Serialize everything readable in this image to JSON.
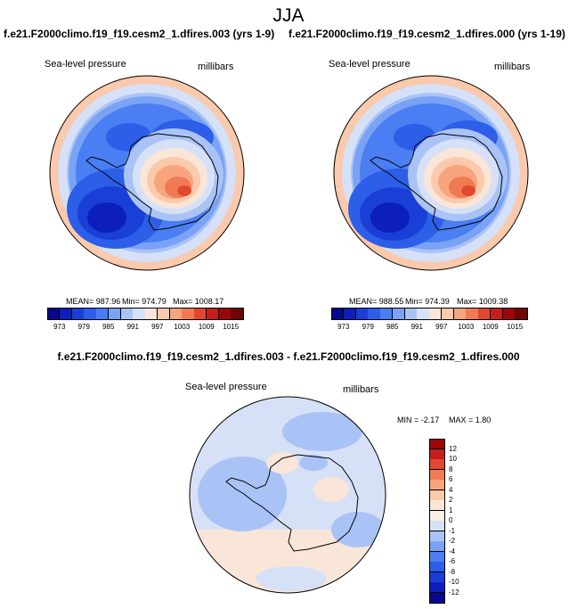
{
  "page": {
    "title": "JJA",
    "diff_title": "f.e21.F2000climo.f19_f19.cesm2_1.dfires.003 - f.e21.F2000climo.f19_f19.cesm2_1.dfires.000"
  },
  "chart_data": [
    {
      "type": "heatmap",
      "projection": "south-polar-stereographic",
      "title": "f.e21.F2000climo.f19_f19.cesm2_1.dfires.003 (yrs 1-9)",
      "variable": "Sea-level pressure",
      "units": "millibars",
      "mean_label": "MEAN= 987.96",
      "min_label": "Min= 974.79",
      "max_label": "Max= 1008.17",
      "mean": 987.96,
      "min": 974.79,
      "max": 1008.17,
      "colorbar": {
        "levels": [
          973,
          976,
          979,
          982,
          985,
          988,
          991,
          994,
          997,
          1000,
          1003,
          1006,
          1009,
          1012,
          1015
        ],
        "tick_labels": [
          "973",
          "979",
          "985",
          "991",
          "997",
          "1003",
          "1009",
          "1015"
        ],
        "colors": [
          "#08088c",
          "#0c1fba",
          "#1a3fd6",
          "#2c5ee8",
          "#4a7ef2",
          "#7aa3f5",
          "#aac3f6",
          "#d6e1f7",
          "#fae6d8",
          "#fbc9ab",
          "#f8a47c",
          "#f07a54",
          "#e0492f",
          "#c51f1c",
          "#9a0808",
          "#6e0404"
        ]
      }
    },
    {
      "type": "heatmap",
      "projection": "south-polar-stereographic",
      "title": "f.e21.F2000climo.f19_f19.cesm2_1.dfires.000 (yrs 1-19)",
      "variable": "Sea-level pressure",
      "units": "millibars",
      "mean_label": "MEAN= 988.55",
      "min_label": "Min= 974.39",
      "max_label": "Max= 1009.38",
      "mean": 988.55,
      "min": 974.39,
      "max": 1009.38,
      "colorbar": {
        "levels": [
          973,
          976,
          979,
          982,
          985,
          988,
          991,
          994,
          997,
          1000,
          1003,
          1006,
          1009,
          1012,
          1015
        ],
        "tick_labels": [
          "973",
          "979",
          "985",
          "991",
          "997",
          "1003",
          "1009",
          "1015"
        ],
        "colors": [
          "#08088c",
          "#0c1fba",
          "#1a3fd6",
          "#2c5ee8",
          "#4a7ef2",
          "#7aa3f5",
          "#aac3f6",
          "#d6e1f7",
          "#fae6d8",
          "#fbc9ab",
          "#f8a47c",
          "#f07a54",
          "#e0492f",
          "#c51f1c",
          "#9a0808",
          "#6e0404"
        ]
      }
    },
    {
      "type": "heatmap",
      "projection": "south-polar-stereographic",
      "title": "f.e21.F2000climo.f19_f19.cesm2_1.dfires.003 - f.e21.F2000climo.f19_f19.cesm2_1.dfires.000",
      "variable": "Sea-level pressure",
      "units": "millibars",
      "min_label": "MIN =  -2.17",
      "max_label": "MAX =   1.80",
      "min": -2.17,
      "max": 1.8,
      "colorbar": {
        "orientation": "vertical",
        "levels": [
          12,
          10,
          8,
          6,
          4,
          2,
          1,
          0,
          -1,
          -2,
          -4,
          -6,
          -8,
          -10,
          -12
        ],
        "tick_labels": [
          "12",
          "10",
          "8",
          "6",
          "4",
          "2",
          "1",
          "0",
          "-1",
          "-2",
          "-4",
          "-6",
          "-8",
          "-10",
          "-12"
        ],
        "colors": [
          "#9a0808",
          "#c51f1c",
          "#e0492f",
          "#f07a54",
          "#f8a47c",
          "#fbc9ab",
          "#fae6d8",
          "#fbeee4",
          "#d6e1f7",
          "#aac3f6",
          "#7aa3f5",
          "#4a7ef2",
          "#2c5ee8",
          "#1a3fd6",
          "#0c1fba",
          "#08088c"
        ]
      }
    }
  ]
}
